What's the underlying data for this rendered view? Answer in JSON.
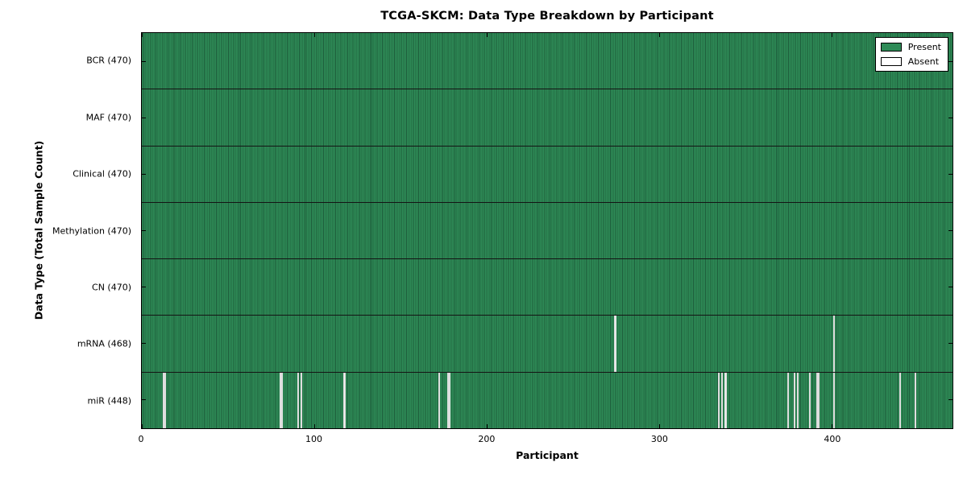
{
  "chart_data": {
    "type": "heatmap",
    "title": "TCGA-SKCM: Data Type Breakdown by Participant",
    "xlabel": "Participant",
    "ylabel": "Data Type (Total Sample Count)",
    "x_ticks": [
      0,
      100,
      200,
      300,
      400
    ],
    "xlim": [
      0,
      470
    ],
    "n_participants": 470,
    "grid": false,
    "legend_position": "upper right",
    "legend": [
      {
        "label": "Present",
        "color": "#2e8b57"
      },
      {
        "label": "Absent",
        "color": "#ffffff"
      }
    ],
    "colors": {
      "present": "#2e8b57",
      "present_edge": "#1d5c3a",
      "absent_gap": "#ededed",
      "frame": "#000000",
      "row_divider": "#141414",
      "text": "#000000",
      "background": "#ffffff"
    },
    "rows": [
      {
        "name": "BCR",
        "label": "BCR (470)",
        "present_count": 470,
        "absent_participants": []
      },
      {
        "name": "MAF",
        "label": "MAF (470)",
        "present_count": 470,
        "absent_participants": []
      },
      {
        "name": "Clinical",
        "label": "Clinical (470)",
        "present_count": 470,
        "absent_participants": []
      },
      {
        "name": "Methylation",
        "label": "Methylation (470)",
        "present_count": 470,
        "absent_participants": []
      },
      {
        "name": "CN",
        "label": "CN (470)",
        "present_count": 470,
        "absent_participants": []
      },
      {
        "name": "mRNA",
        "label": "mRNA (468)",
        "present_count": 468,
        "absent_participants": [
          274,
          401
        ]
      },
      {
        "name": "miR",
        "label": "miR (448)",
        "present_count": 448,
        "absent_participants": [
          12,
          13,
          80,
          81,
          90,
          92,
          117,
          172,
          177,
          178,
          334,
          336,
          338,
          374,
          378,
          380,
          387,
          391,
          392,
          401,
          439,
          448
        ]
      }
    ]
  }
}
